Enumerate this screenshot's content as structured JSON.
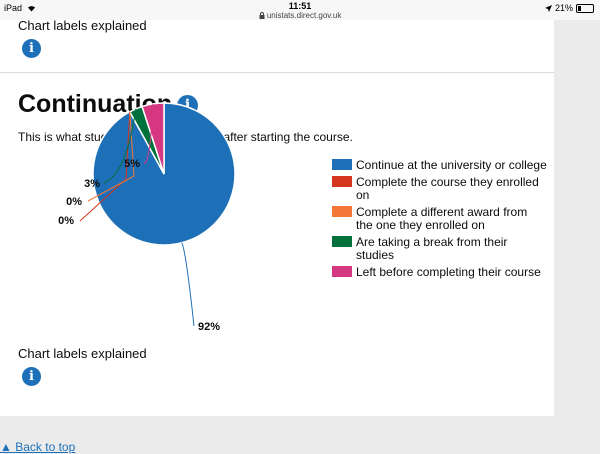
{
  "status_bar": {
    "device": "iPad",
    "time": "11:51",
    "url": "unistats.direct.gov.uk",
    "battery": "21%",
    "battery_level": 0.21
  },
  "top_section": {
    "chart_labels_link": "Chart labels explained"
  },
  "continuation": {
    "title": "Continuation",
    "intro": "This is what students are doing 1 year after starting the course.",
    "chart_labels_link": "Chart labels explained"
  },
  "chart_data": {
    "type": "pie",
    "title": "",
    "slices": [
      {
        "label": "Continue at the university or college",
        "value": 92,
        "value_label": "92%",
        "color": "#1d70b8"
      },
      {
        "label": "Complete the course they enrolled on",
        "value": 0,
        "value_label": "0%",
        "color": "#d4351c"
      },
      {
        "label": "Complete a different award from the one they enrolled on",
        "value": 0,
        "value_label": "0%",
        "color": "#f47738"
      },
      {
        "label": "Are taking a break from their studies",
        "value": 3,
        "value_label": "3%",
        "color": "#00703c"
      },
      {
        "label": "Left before completing their course",
        "value": 5,
        "value_label": "5%",
        "color": "#d53880"
      }
    ],
    "legend_position": "right"
  },
  "footer": {
    "back_to_top": "Back to top"
  }
}
